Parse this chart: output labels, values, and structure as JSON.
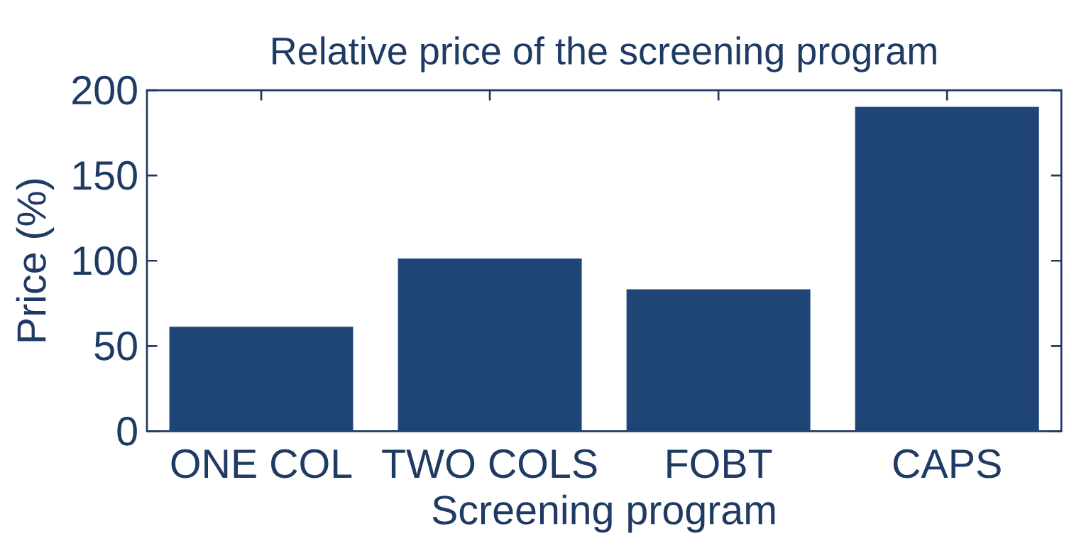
{
  "chart_data": {
    "type": "bar",
    "title": "Relative price of the screening program",
    "xlabel": "Screening program",
    "ylabel": "Price (%)",
    "categories": [
      "ONE COL",
      "TWO COLS",
      "FOBT",
      "CAPS"
    ],
    "values": [
      61,
      101,
      83,
      190
    ],
    "color": "#1f4576",
    "ylim": [
      0,
      200
    ],
    "yticks": [
      0,
      50,
      100,
      150,
      200
    ],
    "grid": false
  }
}
